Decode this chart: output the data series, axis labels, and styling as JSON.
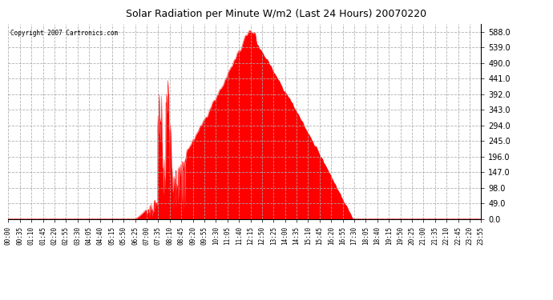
{
  "title": "Solar Radiation per Minute W/m2 (Last 24 Hours) 20070220",
  "copyright": "Copyright 2007 Cartronics.com",
  "bar_color": "#ff0000",
  "background_color": "#ffffff",
  "plot_bg_color": "#ffffff",
  "grid_color": "#aaaaaa",
  "dashed_line_color": "#ff0000",
  "y_ticks": [
    0.0,
    49.0,
    98.0,
    147.0,
    196.0,
    245.0,
    294.0,
    343.0,
    392.0,
    441.0,
    490.0,
    539.0,
    588.0
  ],
  "ylim": [
    0,
    612
  ],
  "x_labels": [
    "00:00",
    "00:35",
    "01:10",
    "01:45",
    "02:20",
    "02:55",
    "03:30",
    "04:05",
    "04:40",
    "05:15",
    "05:50",
    "06:25",
    "07:00",
    "07:35",
    "08:10",
    "08:45",
    "09:20",
    "09:55",
    "10:30",
    "11:05",
    "11:40",
    "12:15",
    "12:50",
    "13:25",
    "14:00",
    "14:35",
    "15:10",
    "15:45",
    "16:20",
    "16:55",
    "17:30",
    "18:05",
    "18:40",
    "19:15",
    "19:50",
    "20:25",
    "21:00",
    "21:35",
    "22:10",
    "22:45",
    "23:20",
    "23:55"
  ]
}
